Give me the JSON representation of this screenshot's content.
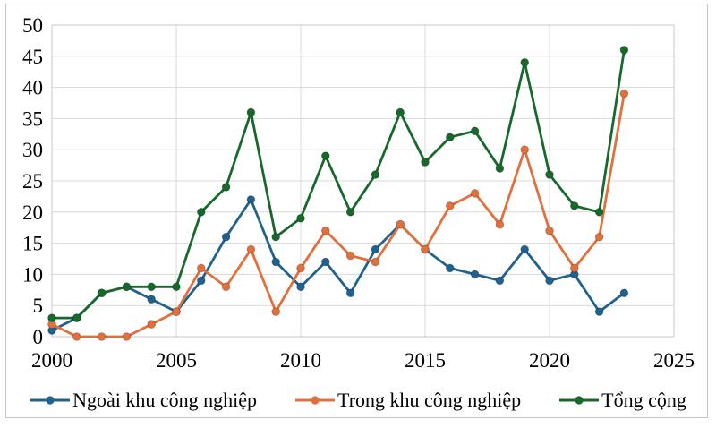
{
  "chart_data": {
    "type": "line",
    "x": [
      2000,
      2001,
      2002,
      2003,
      2004,
      2005,
      2006,
      2007,
      2008,
      2009,
      2010,
      2011,
      2012,
      2013,
      2014,
      2015,
      2016,
      2017,
      2018,
      2019,
      2020,
      2021,
      2022,
      2023
    ],
    "series": [
      {
        "name": "Ngoài khu công nghiệp",
        "color": "#20618E",
        "values": [
          1,
          3,
          7,
          8,
          6,
          4,
          9,
          16,
          22,
          12,
          8,
          12,
          7,
          14,
          18,
          14,
          11,
          10,
          9,
          14,
          9,
          10,
          4,
          7
        ]
      },
      {
        "name": "Trong khu công nghiệp",
        "color": "#E2703C",
        "values": [
          2,
          0,
          0,
          0,
          2,
          4,
          11,
          8,
          14,
          4,
          11,
          17,
          13,
          12,
          18,
          14,
          21,
          23,
          18,
          30,
          17,
          11,
          16,
          39
        ]
      },
      {
        "name": "Tổng cộng",
        "color": "#17692B",
        "values": [
          3,
          3,
          7,
          8,
          8,
          8,
          20,
          24,
          36,
          16,
          19,
          29,
          20,
          26,
          36,
          28,
          32,
          33,
          27,
          44,
          26,
          21,
          20,
          46
        ]
      }
    ],
    "title": "",
    "xlabel": "",
    "ylabel": "",
    "xlim": [
      2000,
      2025
    ],
    "ylim": [
      0,
      50
    ],
    "x_ticks": [
      "2000",
      "2005",
      "2010",
      "2015",
      "2020",
      "2025"
    ],
    "y_ticks": [
      "0",
      "5",
      "10",
      "15",
      "20",
      "25",
      "30",
      "35",
      "40",
      "45",
      "50"
    ],
    "grid": true,
    "legend_position": "bottom",
    "grid_color": "#d8d8d8",
    "plot_border_color": "#c9c9c9"
  }
}
